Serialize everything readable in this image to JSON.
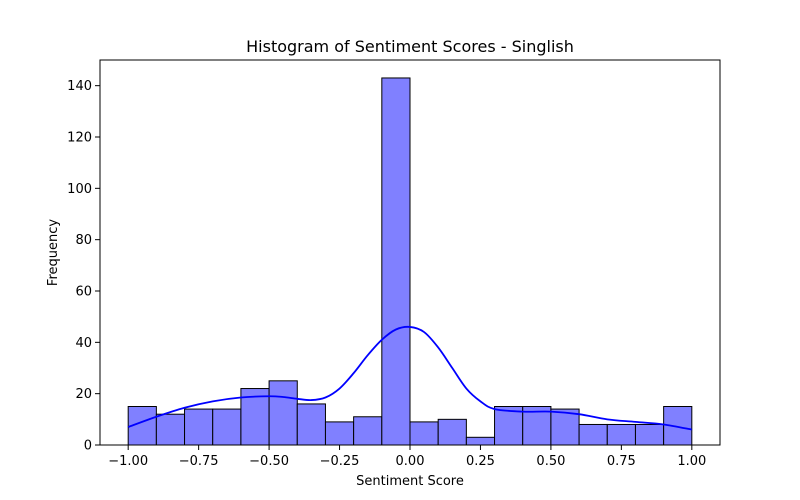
{
  "chart_data": {
    "type": "bar",
    "subtype": "histogram",
    "title": "Histogram of Sentiment Scores - Singlish",
    "xlabel": "Sentiment Score",
    "ylabel": "Frequency",
    "xlim": [
      -1.1,
      1.1
    ],
    "ylim": [
      0,
      150
    ],
    "xticks": [
      -1.0,
      -0.75,
      -0.5,
      -0.25,
      0.0,
      0.25,
      0.5,
      0.75,
      1.0
    ],
    "xtick_labels": [
      "−1.00",
      "−0.75",
      "−0.50",
      "−0.25",
      "0.00",
      "0.25",
      "0.50",
      "0.75",
      "1.00"
    ],
    "yticks": [
      0,
      20,
      40,
      60,
      80,
      100,
      120,
      140
    ],
    "ytick_labels": [
      "0",
      "20",
      "40",
      "60",
      "80",
      "100",
      "120",
      "140"
    ],
    "bin_edges": [
      -1.0,
      -0.9,
      -0.8,
      -0.7,
      -0.6,
      -0.5,
      -0.4,
      -0.3,
      -0.2,
      -0.1,
      0.0,
      0.1,
      0.2,
      0.3,
      0.4,
      0.5,
      0.6,
      0.7,
      0.8,
      0.9,
      1.0
    ],
    "counts": [
      15,
      12,
      14,
      14,
      22,
      25,
      16,
      9,
      11,
      143,
      9,
      10,
      3,
      15,
      15,
      14,
      8,
      8,
      8,
      15
    ],
    "kde": {
      "x": [
        -1.0,
        -0.9,
        -0.8,
        -0.7,
        -0.6,
        -0.5,
        -0.45,
        -0.4,
        -0.35,
        -0.3,
        -0.25,
        -0.2,
        -0.15,
        -0.1,
        -0.05,
        0.0,
        0.05,
        0.1,
        0.15,
        0.2,
        0.25,
        0.3,
        0.4,
        0.5,
        0.6,
        0.7,
        0.8,
        0.9,
        1.0
      ],
      "y": [
        7,
        11,
        14.5,
        17,
        18.5,
        19,
        18.7,
        18,
        17.5,
        18.5,
        22,
        28,
        35,
        41,
        45,
        46,
        44,
        38,
        30,
        22,
        17,
        14,
        13,
        13,
        12,
        10,
        9,
        8,
        6
      ]
    },
    "grid": false,
    "colors": {
      "bar_fill": "#8080ff",
      "bar_edge": "#000000",
      "kde_line": "#0000ff"
    }
  }
}
